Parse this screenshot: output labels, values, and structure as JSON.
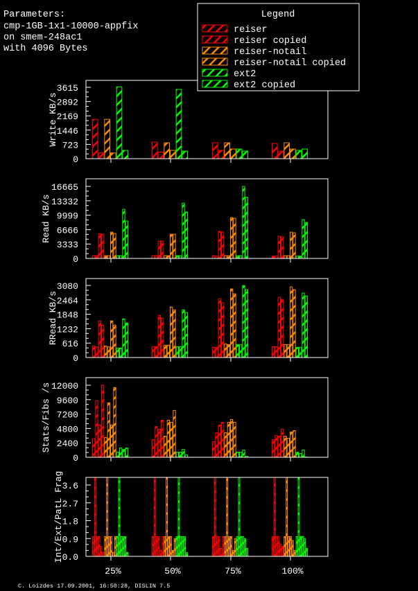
{
  "parameters": [
    "Parameters:",
    "cmp-1GB-1x1-10000-appfix",
    "on smem-248ac1",
    "with 4096 Bytes"
  ],
  "legend": {
    "title": "Legend",
    "items": [
      {
        "label": "reiser",
        "color": "#ff0000"
      },
      {
        "label": "reiser copied",
        "color": "#ff0000"
      },
      {
        "label": "reiser-notail",
        "color": "#ff8c00"
      },
      {
        "label": "reiser-notail copied",
        "color": "#ff8c00"
      },
      {
        "label": "ext2",
        "color": "#00ff00"
      },
      {
        "label": "ext2 copied",
        "color": "#00ff00"
      }
    ]
  },
  "footer": "C. Loizdes 17.09.2001, 16:50:28, DISLIN 7.5",
  "chart_data": [
    {
      "type": "bar",
      "ylabel": "Write KB/s",
      "yticks": [
        "0",
        "723",
        "1446",
        "2169",
        "2892",
        "3615"
      ],
      "ylim": [
        0,
        3615
      ],
      "categories": [
        "25%",
        "50%",
        "75%",
        "100%"
      ],
      "series": [
        {
          "name": "reiser",
          "values": [
            [
              1994
            ],
            [
              840
            ],
            [
              805
            ],
            [
              770
            ]
          ]
        },
        {
          "name": "reiser copied",
          "values": [
            [
              290
            ],
            [
              327
            ],
            [
              420
            ],
            [
              385
            ]
          ]
        },
        {
          "name": "reiser-notail",
          "values": [
            [
              1994
            ],
            [
              805
            ],
            [
              805
            ],
            [
              805
            ]
          ]
        },
        {
          "name": "reiser-notail copied",
          "values": [
            [
              290
            ],
            [
              420
            ],
            [
              490
            ],
            [
              490
            ]
          ]
        },
        {
          "name": "ext2",
          "values": [
            [
              3638
            ],
            [
              3510
            ],
            [
              490
            ],
            [
              420
            ]
          ]
        },
        {
          "name": "ext2 copied",
          "values": [
            [
              420
            ],
            [
              385
            ],
            [
              385
            ],
            [
              490
            ]
          ]
        }
      ]
    },
    {
      "type": "bar",
      "ylabel": "Read KB/s",
      "yticks": [
        "0",
        "3333",
        "6666",
        "9999",
        "13332",
        "16665"
      ],
      "ylim": [
        0,
        16665
      ],
      "categories": [
        "25%",
        "50%",
        "75%",
        "100%"
      ],
      "series": [
        {
          "name": "reiser",
          "values": [
            [
              640,
              640
            ],
            [
              640,
              640
            ],
            [
              640,
              540
            ],
            [
              540,
              540
            ]
          ]
        },
        {
          "name": "reiser copied",
          "values": [
            [
              5714,
              5600
            ],
            [
              4000,
              4000
            ],
            [
              6250,
              6090
            ],
            [
              5130,
              4970
            ]
          ]
        },
        {
          "name": "reiser-notail",
          "values": [
            [
              640,
              640
            ],
            [
              640,
              640
            ],
            [
              640,
              640
            ],
            [
              640,
              640
            ]
          ]
        },
        {
          "name": "reiser-notail copied",
          "values": [
            [
              6090,
              5770
            ],
            [
              5600,
              5600
            ],
            [
              9450,
              9290
            ],
            [
              6090,
              5930
            ]
          ]
        },
        {
          "name": "ext2",
          "values": [
            [
              640,
              640
            ],
            [
              640,
              640
            ],
            [
              640,
              640
            ],
            [
              540,
              540
            ]
          ]
        },
        {
          "name": "ext2 copied",
          "values": [
            [
              11370,
              8650
            ],
            [
              12800,
              10730
            ],
            [
              16660,
              14150
            ],
            [
              8970,
              8330
            ]
          ]
        }
      ]
    },
    {
      "type": "bar",
      "ylabel": "RRead KB/s",
      "yticks": [
        "0",
        "616",
        "1232",
        "1848",
        "2464",
        "3080"
      ],
      "ylim": [
        0,
        3080
      ],
      "categories": [
        "25%",
        "50%",
        "75%",
        "100%"
      ],
      "series": [
        {
          "name": "reiser",
          "values": [
            [
              495,
              455
            ],
            [
              465,
              465
            ],
            [
              436,
              436
            ],
            [
              465,
              465
            ]
          ]
        },
        {
          "name": "reiser copied",
          "values": [
            [
              1565,
              1386
            ],
            [
              1802,
              1683
            ],
            [
              2515,
              2336
            ],
            [
              2574,
              2485
            ]
          ]
        },
        {
          "name": "reiser-notail",
          "values": [
            [
              495,
              455
            ],
            [
              525,
              525
            ],
            [
              584,
              554
            ],
            [
              554,
              554
            ]
          ]
        },
        {
          "name": "reiser-notail copied",
          "values": [
            [
              1565,
              1386
            ],
            [
              2158,
              2040
            ],
            [
              2930,
              2723
            ],
            [
              3020,
              2900
            ]
          ]
        },
        {
          "name": "ext2",
          "values": [
            [
              406,
              406
            ],
            [
              465,
              465
            ],
            [
              554,
              554
            ],
            [
              436,
              436
            ]
          ]
        },
        {
          "name": "ext2 copied",
          "values": [
            [
              1653,
              1475
            ],
            [
              2040,
              1921
            ],
            [
              3079,
              2900
            ],
            [
              2752,
              2633
            ]
          ]
        }
      ]
    },
    {
      "type": "bar",
      "ylabel": "Stats/Fibs /s",
      "yticks": [
        "0",
        "2400",
        "4800",
        "7200",
        "9600",
        "12000"
      ],
      "ylim": [
        0,
        12000
      ],
      "categories": [
        "25%",
        "50%",
        "75%",
        "100%"
      ],
      "series": [
        {
          "name": "reiser",
          "values": [
            [
              3100,
              9420
            ],
            [
              2930,
              5130
            ],
            [
              2590,
              4090
            ],
            [
              2930,
              3630
            ]
          ]
        },
        {
          "name": "reiser copied",
          "values": [
            [
              5360,
              12000
            ],
            [
              4670,
              6180
            ],
            [
              5360,
              5830
            ],
            [
              3510,
              4670
            ]
          ]
        },
        {
          "name": "reiser-notail",
          "values": [
            [
              3280,
              9070
            ],
            [
              3510,
              6180
            ],
            [
              4090,
              5830
            ],
            [
              3510,
              3170
            ]
          ]
        },
        {
          "name": "reiser-notail copied",
          "values": [
            [
              5360,
              11620
            ],
            [
              5830,
              7800
            ],
            [
              6290,
              5830
            ],
            [
              4210,
              4440
            ]
          ]
        },
        {
          "name": "ext2",
          "values": [
            [
              850,
              1545
            ],
            [
              850,
              850
            ],
            [
              850,
              850
            ],
            [
              850,
              620
            ]
          ]
        },
        {
          "name": "ext2 copied",
          "values": [
            [
              1310,
              1545
            ],
            [
              1310,
              386
            ],
            [
              1200,
              150
            ],
            [
              1200,
              40
            ]
          ]
        }
      ]
    },
    {
      "type": "bar",
      "ylabel": "Int/Ext/PatL Frag",
      "yticks": [
        "0.0",
        "0.9",
        "1.8",
        "2.7",
        "3.6"
      ],
      "ylim": [
        0,
        3.9
      ],
      "categories": [
        "25%",
        "50%",
        "75%",
        "100%"
      ],
      "series": [
        {
          "name": "reiser",
          "values": [
            [
              1.0,
              4.2,
              1.0
            ],
            [
              1.0,
              4.2,
              1.0
            ],
            [
              1.0,
              4.2,
              1.0
            ],
            [
              1.0,
              4.2,
              1.0
            ]
          ]
        },
        {
          "name": "reiser copied",
          "values": [
            [
              1.0,
              0.5,
              0.2
            ],
            [
              1.0,
              0.3,
              1.0
            ],
            [
              1.0,
              0.4,
              1.0
            ],
            [
              1.0,
              0.6,
              0.5
            ]
          ]
        },
        {
          "name": "reiser-notail",
          "values": [
            [
              1.0,
              4.2,
              1.0
            ],
            [
              1.0,
              4.2,
              1.0
            ],
            [
              1.0,
              4.2,
              1.0
            ],
            [
              1.0,
              4.2,
              1.0
            ]
          ]
        },
        {
          "name": "reiser-notail copied",
          "values": [
            [
              1.0,
              0.2,
              1.0
            ],
            [
              1.0,
              0.3,
              0.9
            ],
            [
              1.0,
              0.3,
              0.9
            ],
            [
              1.0,
              0.8,
              0.3
            ]
          ]
        },
        {
          "name": "ext2",
          "values": [
            [
              1.0,
              4.2,
              1.0
            ],
            [
              1.0,
              4.2,
              1.0
            ],
            [
              1.0,
              4.2,
              1.0
            ],
            [
              1.0,
              4.2,
              1.0
            ]
          ]
        },
        {
          "name": "ext2 copied",
          "values": [
            [
              1.0,
              1.0,
              0.2
            ],
            [
              1.0,
              1.0,
              0.2
            ],
            [
              1.0,
              0.9,
              0.4
            ],
            [
              1.0,
              0.9,
              0.4
            ]
          ]
        }
      ]
    }
  ]
}
